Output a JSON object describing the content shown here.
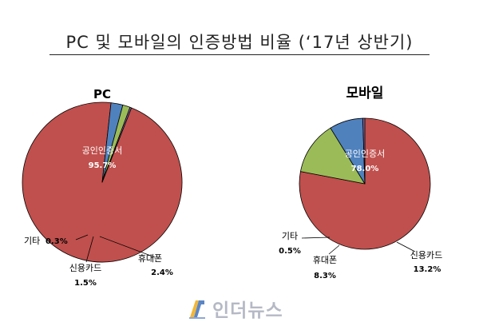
{
  "page": {
    "title": "PC 및 모바일의 인증방법 비율 (‘17년 상반기)"
  },
  "chart_data": [
    {
      "type": "pie",
      "title": "PC",
      "slices": [
        {
          "label": "공인인증서",
          "value": 95.7,
          "display": "95.7%",
          "color": "#c0504d"
        },
        {
          "label": "휴대폰",
          "value": 2.4,
          "display": "2.4%",
          "color": "#4f81bd"
        },
        {
          "label": "신용카드",
          "value": 1.5,
          "display": "1.5%",
          "color": "#9bbb59"
        },
        {
          "label": "기타",
          "value": 0.3,
          "display": "0.3%",
          "color": "#8064a2"
        }
      ]
    },
    {
      "type": "pie",
      "title": "모바일",
      "slices": [
        {
          "label": "공인인증서",
          "value": 78.0,
          "display": "78.0%",
          "color": "#c0504d"
        },
        {
          "label": "신용카드",
          "value": 13.2,
          "display": "13.2%",
          "color": "#9bbb59"
        },
        {
          "label": "휴대폰",
          "value": 8.3,
          "display": "8.3%",
          "color": "#4f81bd"
        },
        {
          "label": "기타",
          "value": 0.5,
          "display": "0.5%",
          "color": "#8064a2"
        }
      ]
    }
  ],
  "watermark": {
    "text": "인더뉴스",
    "logo": "inthenews-logo-icon"
  }
}
